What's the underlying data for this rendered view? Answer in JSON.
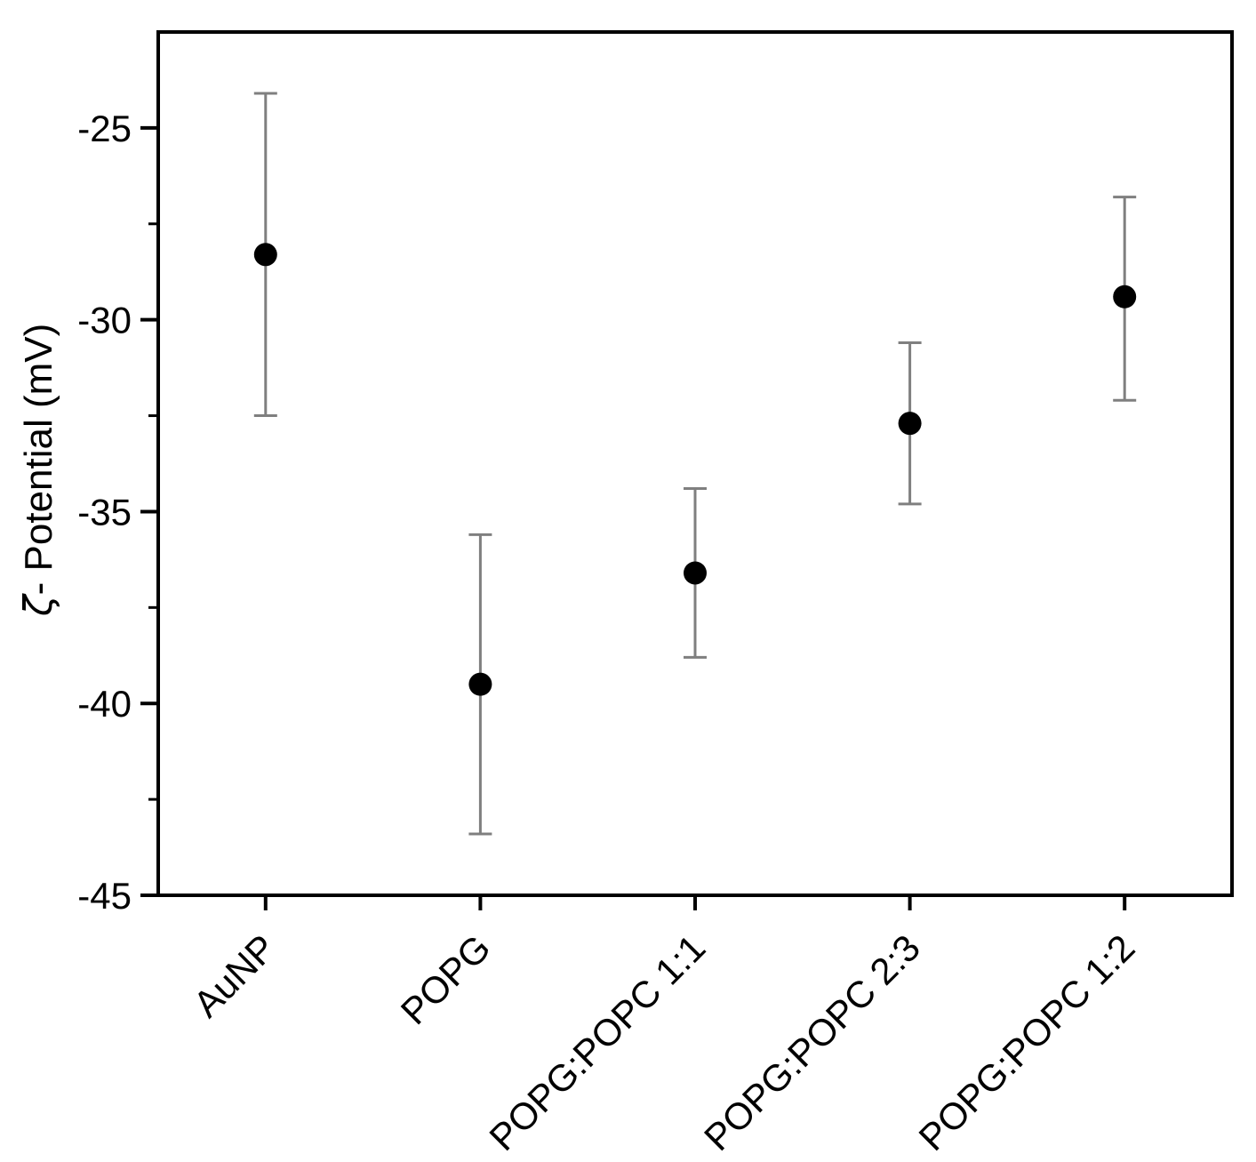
{
  "figure": {
    "background_color": "#ffffff"
  },
  "chart_data": {
    "type": "scatter",
    "title": "",
    "xlabel": "",
    "ylabel": "ζ- Potential (mV)",
    "ylabel_parts": {
      "symbol": "ζ",
      "rest": "- Potential (mV)"
    },
    "categories": [
      "AuNP",
      "POPG",
      "POPG:POPC 1:1",
      "POPG:POPC 2:3",
      "POPG:POPC 1:2"
    ],
    "series": [
      {
        "name": "zeta-potential",
        "marker": "filled-circle",
        "marker_color": "#000000",
        "points": [
          {
            "category": "AuNP",
            "value": -28.3,
            "err_upper": -24.1,
            "err_lower": -32.5
          },
          {
            "category": "POPG",
            "value": -39.5,
            "err_upper": -35.6,
            "err_lower": -43.4
          },
          {
            "category": "POPG:POPC 1:1",
            "value": -36.6,
            "err_upper": -34.4,
            "err_lower": -38.8
          },
          {
            "category": "POPG:POPC 2:3",
            "value": -32.7,
            "err_upper": -30.6,
            "err_lower": -34.8
          },
          {
            "category": "POPG:POPC 1:2",
            "value": -29.4,
            "err_upper": -26.8,
            "err_lower": -32.1
          }
        ]
      }
    ],
    "ylim": [
      -45,
      -22.5
    ],
    "yticks": [
      -25,
      -30,
      -35,
      -40,
      -45
    ],
    "ytick_labels": [
      "-25",
      "-30",
      "-35",
      "-40",
      "-45"
    ],
    "yticks_minor": [
      -27.5,
      -32.5,
      -37.5,
      -42.5
    ],
    "grid": false,
    "legend": null,
    "errorbar_color": "#7f7f7f",
    "axis_color": "#000000",
    "x_tick_label_rotation_deg": 45
  }
}
